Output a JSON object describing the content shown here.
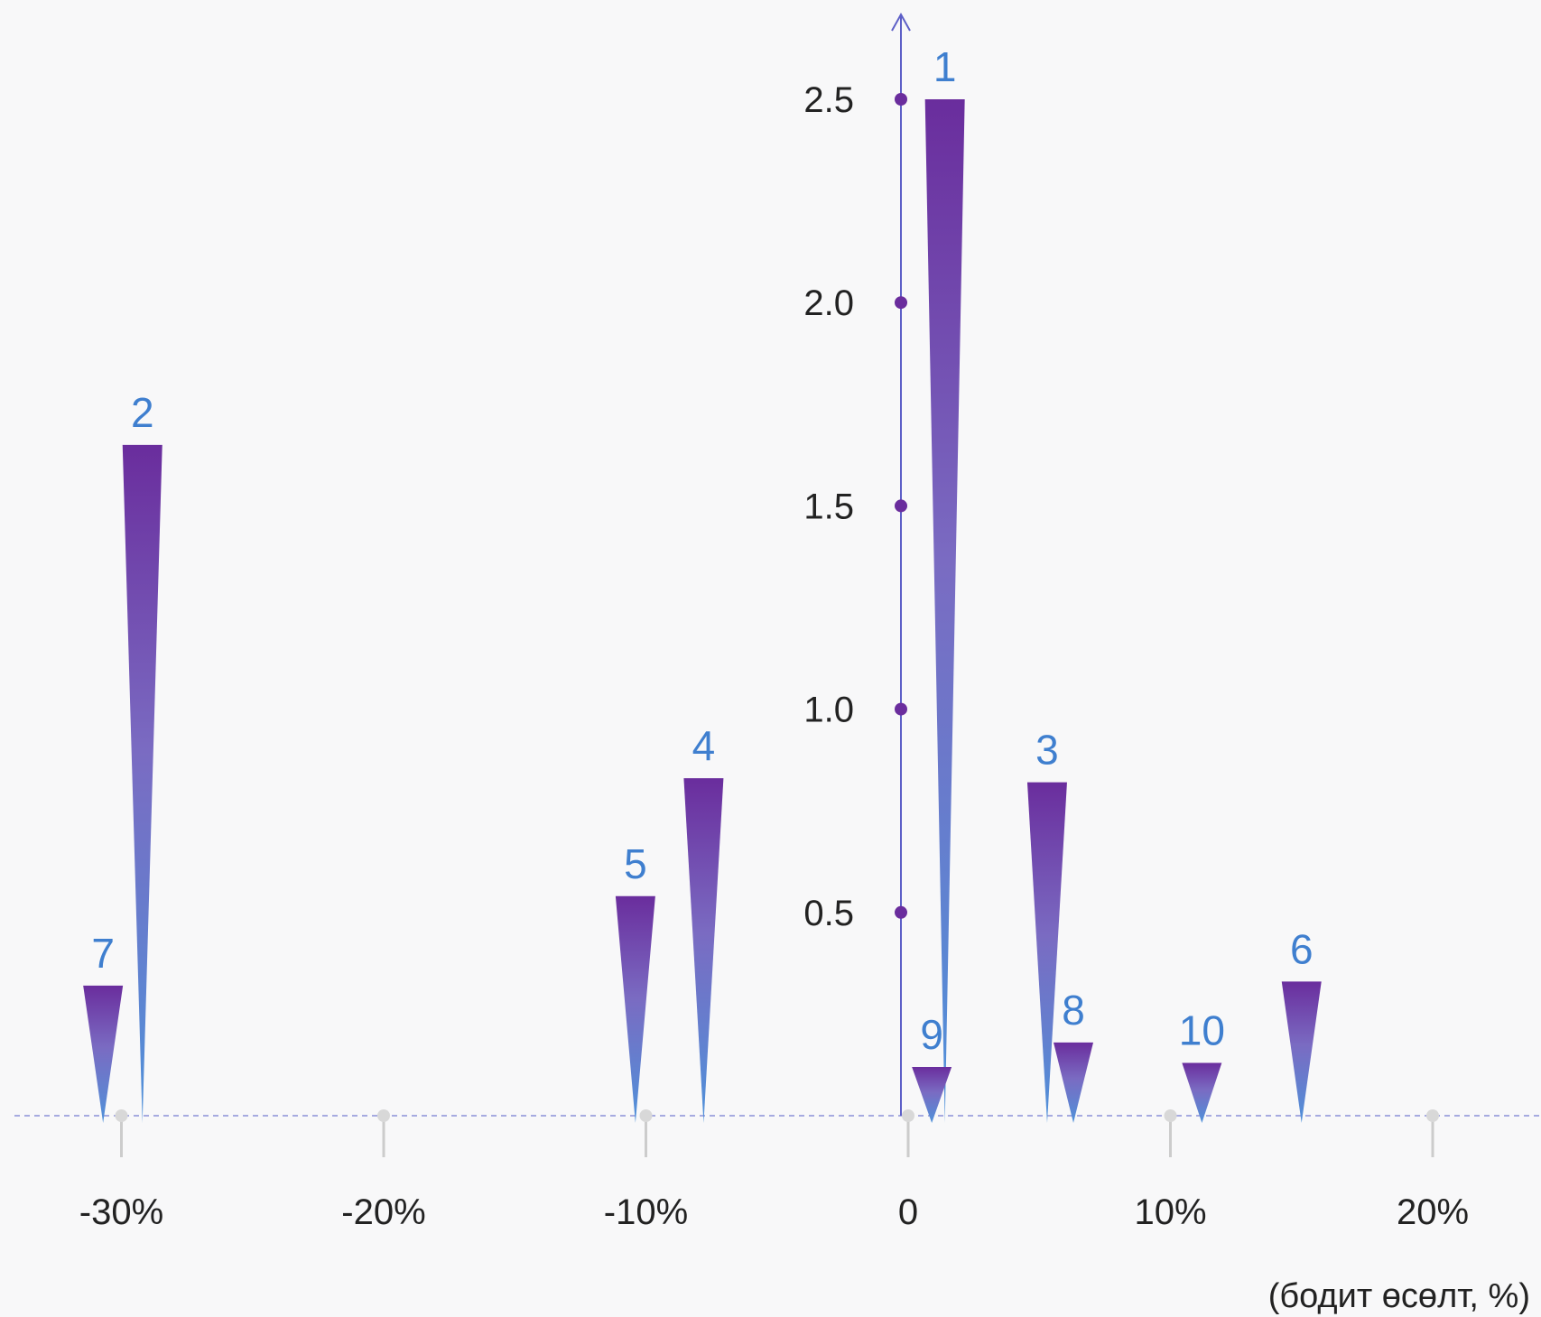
{
  "chart_data": {
    "type": "scatter",
    "x_unit_label": "(бодит өсөлт, %)",
    "x_ticks": [
      {
        "value": -30,
        "label": "-30%"
      },
      {
        "value": -20,
        "label": "-20%"
      },
      {
        "value": -10,
        "label": "-10%"
      },
      {
        "value": 0,
        "label": "0"
      },
      {
        "value": 10,
        "label": "10%"
      },
      {
        "value": 20,
        "label": "20%"
      }
    ],
    "y_ticks": [
      {
        "value": 0.5,
        "label": "0.5"
      },
      {
        "value": 1.0,
        "label": "1.0"
      },
      {
        "value": 1.5,
        "label": "1.5"
      },
      {
        "value": 2.0,
        "label": "2.0"
      },
      {
        "value": 2.5,
        "label": "2.5"
      }
    ],
    "xlim": [
      -34,
      24
    ],
    "ylim": [
      0,
      2.75
    ],
    "points": [
      {
        "label": "1",
        "x": 1.4,
        "y": 2.5
      },
      {
        "label": "2",
        "x": -29.2,
        "y": 1.65
      },
      {
        "label": "3",
        "x": 5.3,
        "y": 0.82
      },
      {
        "label": "4",
        "x": -7.8,
        "y": 0.83
      },
      {
        "label": "5",
        "x": -10.4,
        "y": 0.54
      },
      {
        "label": "6",
        "x": 15,
        "y": 0.33
      },
      {
        "label": "7",
        "x": -30.7,
        "y": 0.32
      },
      {
        "label": "8",
        "x": 6.3,
        "y": 0.18
      },
      {
        "label": "9",
        "x": 0.9,
        "y": 0.12
      },
      {
        "label": "10",
        "x": 11.2,
        "y": 0.13
      }
    ],
    "colors": {
      "marker_top": "#6a2d9d",
      "marker_bottom": "#4f92da",
      "label": "#3f7fcf",
      "axis": "#5d5fc7",
      "y_dot": "#6a2d9d",
      "baseline": "#8b8fd8",
      "x_tick": "#cccccc"
    }
  }
}
